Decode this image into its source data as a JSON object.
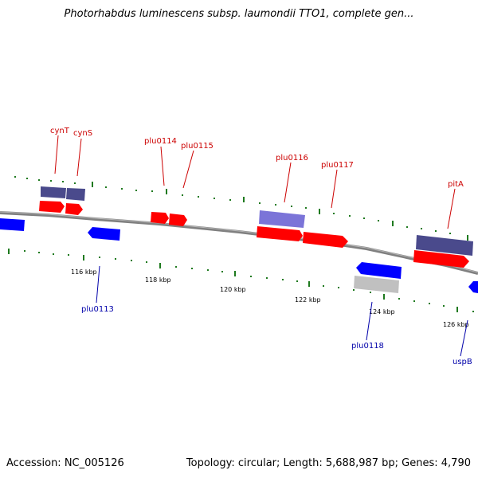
{
  "title": "Photorhabdus luminescens subsp. laumondii TTO1, complete gen...",
  "footer": {
    "accession": "Accession: NC_005126",
    "summary": "Topology: circular; Length: 5,688,987 bp; Genes: 4,790"
  },
  "colors": {
    "backbone": "#808080",
    "tick": "#1f7a1f",
    "forward_gene": "#ff0000",
    "reverse_gene": "#0000ff",
    "forward_cds_dark": "#4a4a8c",
    "forward_cds_light": "#7b74d8",
    "reverse_cds_light": "#c0c0c0",
    "label_forward": "#cc0000",
    "label_reverse": "#0000aa"
  },
  "scale_labels": [
    "116 kbp",
    "118 kbp",
    "120 kbp",
    "122 kbp",
    "124 kbp",
    "126 kbp"
  ],
  "gene_labels_forward": [
    "cynT",
    "cynS",
    "plu0114",
    "plu0115",
    "plu0116",
    "plu0117",
    "pitA"
  ],
  "gene_labels_reverse": [
    "plu0113",
    "plu0118",
    "uspB"
  ]
}
